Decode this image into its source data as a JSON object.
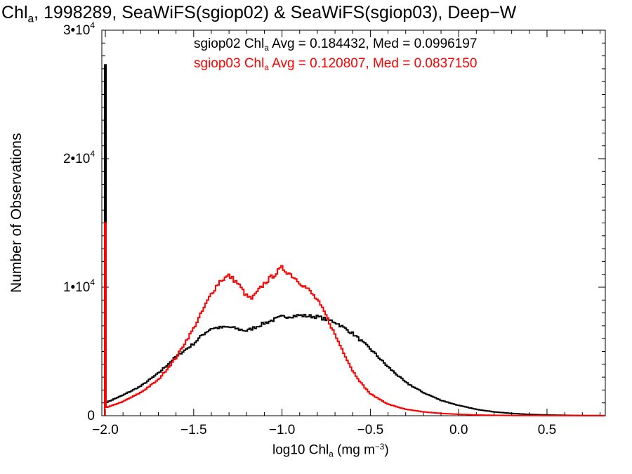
{
  "title": {
    "pre": "Chl",
    "sub": "a",
    "post": ", 1998289, SeaWiFS(sgiop02) & SeaWiFS(sgiop03), Deep−W"
  },
  "stats": [
    {
      "pre": "sgiop02 Chl",
      "sub": "a",
      "post": " Avg = 0.184432, Med = 0.0996197",
      "color": "#000000"
    },
    {
      "pre": "sgiop03 Chl",
      "sub": "a",
      "post": " Avg = 0.120807, Med = 0.0837150",
      "color": "#ff0000"
    }
  ],
  "chart_data": {
    "type": "line",
    "xlabel": {
      "pre": "log10 Chl",
      "sub": "a",
      "mid": " (mg m",
      "sup": "−3",
      "post": ")"
    },
    "ylabel": "Number of Observations",
    "xlim": [
      -2.02,
      0.83
    ],
    "ylim": [
      0,
      30000
    ],
    "x_ticks": [
      {
        "value": -2.0,
        "label": "−2.0"
      },
      {
        "value": -1.5,
        "label": "−1.5"
      },
      {
        "value": -1.0,
        "label": "−1.0"
      },
      {
        "value": -0.5,
        "label": "−0.5"
      },
      {
        "value": 0.0,
        "label": "0.0"
      },
      {
        "value": 0.5,
        "label": "0.5"
      }
    ],
    "y_ticks": [
      {
        "value": 0,
        "label": "0"
      },
      {
        "value": 10000,
        "base": "1•10",
        "exp": "4"
      },
      {
        "value": 20000,
        "base": "2•10",
        "exp": "4"
      },
      {
        "value": 30000,
        "base": "3•10",
        "exp": "4"
      }
    ],
    "grid": false,
    "step": true,
    "series": [
      {
        "name": "sgiop02",
        "color": "#000000",
        "spike": {
          "x": -2.0,
          "y": 27300
        },
        "points": [
          [
            -2.0,
            1000
          ],
          [
            -1.9,
            1600
          ],
          [
            -1.8,
            2300
          ],
          [
            -1.7,
            3300
          ],
          [
            -1.6,
            4600
          ],
          [
            -1.5,
            5600
          ],
          [
            -1.45,
            6300
          ],
          [
            -1.4,
            6800
          ],
          [
            -1.3,
            6900
          ],
          [
            -1.2,
            6600
          ],
          [
            -1.1,
            7200
          ],
          [
            -1.0,
            7700
          ],
          [
            -0.9,
            7800
          ],
          [
            -0.8,
            7700
          ],
          [
            -0.7,
            7300
          ],
          [
            -0.6,
            6400
          ],
          [
            -0.5,
            5200
          ],
          [
            -0.4,
            3800
          ],
          [
            -0.3,
            2600
          ],
          [
            -0.2,
            1800
          ],
          [
            -0.1,
            1200
          ],
          [
            0.0,
            800
          ],
          [
            0.1,
            500
          ],
          [
            0.2,
            300
          ],
          [
            0.3,
            180
          ],
          [
            0.4,
            100
          ],
          [
            0.5,
            60
          ],
          [
            0.6,
            30
          ],
          [
            0.7,
            15
          ],
          [
            0.83,
            5
          ]
        ]
      },
      {
        "name": "sgiop03",
        "color": "#ff0000",
        "spike": {
          "x": -2.0,
          "y": 15000
        },
        "points": [
          [
            -2.0,
            600
          ],
          [
            -1.9,
            1100
          ],
          [
            -1.8,
            1800
          ],
          [
            -1.7,
            2800
          ],
          [
            -1.6,
            4500
          ],
          [
            -1.5,
            6800
          ],
          [
            -1.4,
            9500
          ],
          [
            -1.35,
            10500
          ],
          [
            -1.3,
            10900
          ],
          [
            -1.25,
            10300
          ],
          [
            -1.2,
            9300
          ],
          [
            -1.17,
            9100
          ],
          [
            -1.1,
            10300
          ],
          [
            -1.05,
            10900
          ],
          [
            -1.0,
            11500
          ],
          [
            -0.95,
            11000
          ],
          [
            -0.9,
            10400
          ],
          [
            -0.85,
            9800
          ],
          [
            -0.8,
            9000
          ],
          [
            -0.75,
            7800
          ],
          [
            -0.7,
            6300
          ],
          [
            -0.65,
            4900
          ],
          [
            -0.6,
            3500
          ],
          [
            -0.55,
            2500
          ],
          [
            -0.5,
            1700
          ],
          [
            -0.4,
            900
          ],
          [
            -0.3,
            500
          ],
          [
            -0.2,
            300
          ],
          [
            -0.1,
            180
          ],
          [
            0.0,
            110
          ],
          [
            0.1,
            60
          ],
          [
            0.2,
            30
          ],
          [
            0.4,
            10
          ],
          [
            0.83,
            0
          ]
        ]
      }
    ]
  }
}
